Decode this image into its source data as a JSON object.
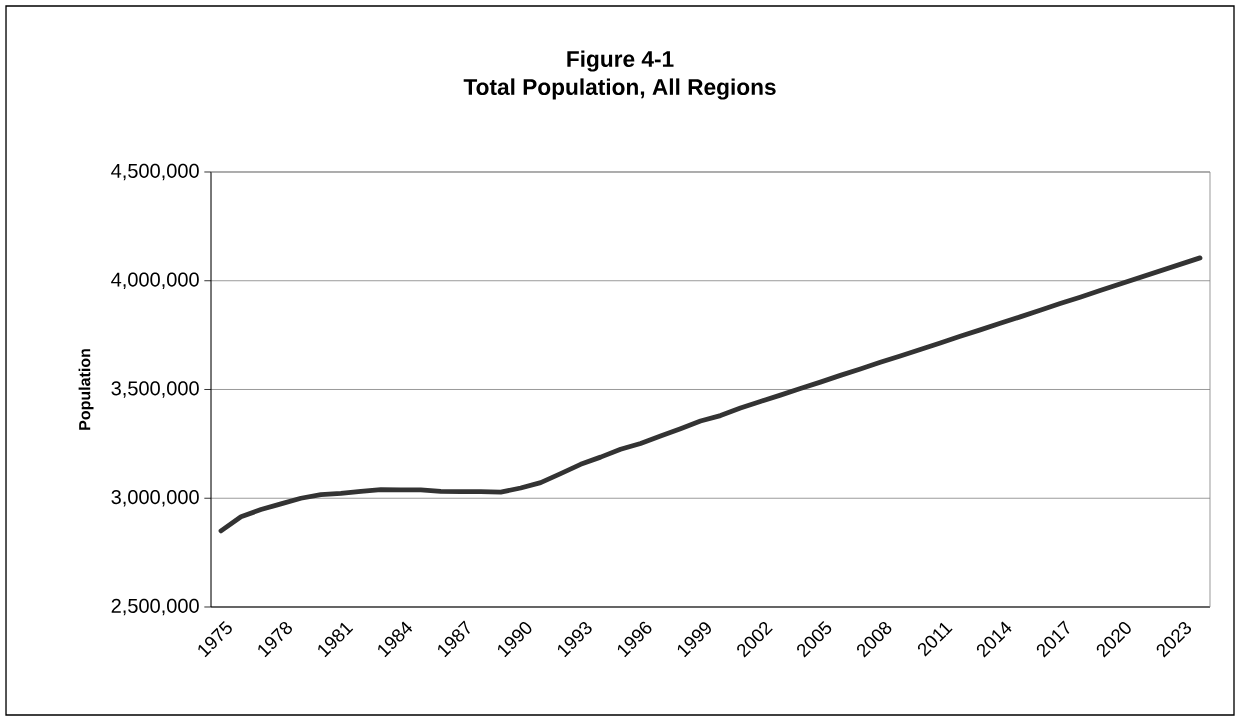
{
  "chart_data": {
    "type": "line",
    "title": "Figure 4-1",
    "subtitle": "Total Population, All Regions",
    "ylabel": "Population",
    "categories": [
      "1975",
      null,
      null,
      "1978",
      null,
      null,
      "1981",
      null,
      null,
      "1984",
      null,
      null,
      "1987",
      null,
      null,
      "1990",
      null,
      null,
      "1993",
      null,
      null,
      "1996",
      null,
      null,
      "1999",
      null,
      null,
      "2002",
      null,
      null,
      "2005",
      null,
      null,
      "2008",
      null,
      null,
      "2011",
      null,
      null,
      "2014",
      null,
      null,
      "2017",
      null,
      null,
      "2020",
      null,
      null,
      "2023",
      null
    ],
    "series": [
      {
        "color": "#333333",
        "values": [
          2850000,
          2915000,
          2948000,
          2974000,
          3000000,
          3017000,
          3022000,
          3032000,
          3040000,
          3038000,
          3038000,
          3032000,
          3030000,
          3030000,
          3028000,
          3047000,
          3072000,
          3113000,
          3156000,
          3189000,
          3225000,
          3252000,
          3286000,
          3320000,
          3355000,
          3380000,
          3415000,
          3445000,
          3474000,
          3505000,
          3534000,
          3565000,
          3594000,
          3625000,
          3654000,
          3684000,
          3714000,
          3745000,
          3774000,
          3805000,
          3834000,
          3864000,
          3895000,
          3924000,
          3955000,
          3985000,
          4015000,
          4045000,
          4075000,
          4105000
        ]
      }
    ],
    "ylim": [
      2500000,
      4500000
    ],
    "yticks": [
      {
        "value": 2500000,
        "label": "2,500,000"
      },
      {
        "value": 3000000,
        "label": "3,000,000"
      },
      {
        "value": 3500000,
        "label": "3,500,000"
      },
      {
        "value": 4000000,
        "label": "4,000,000"
      },
      {
        "value": 4500000,
        "label": "4,500,000"
      }
    ],
    "grid": "y"
  }
}
